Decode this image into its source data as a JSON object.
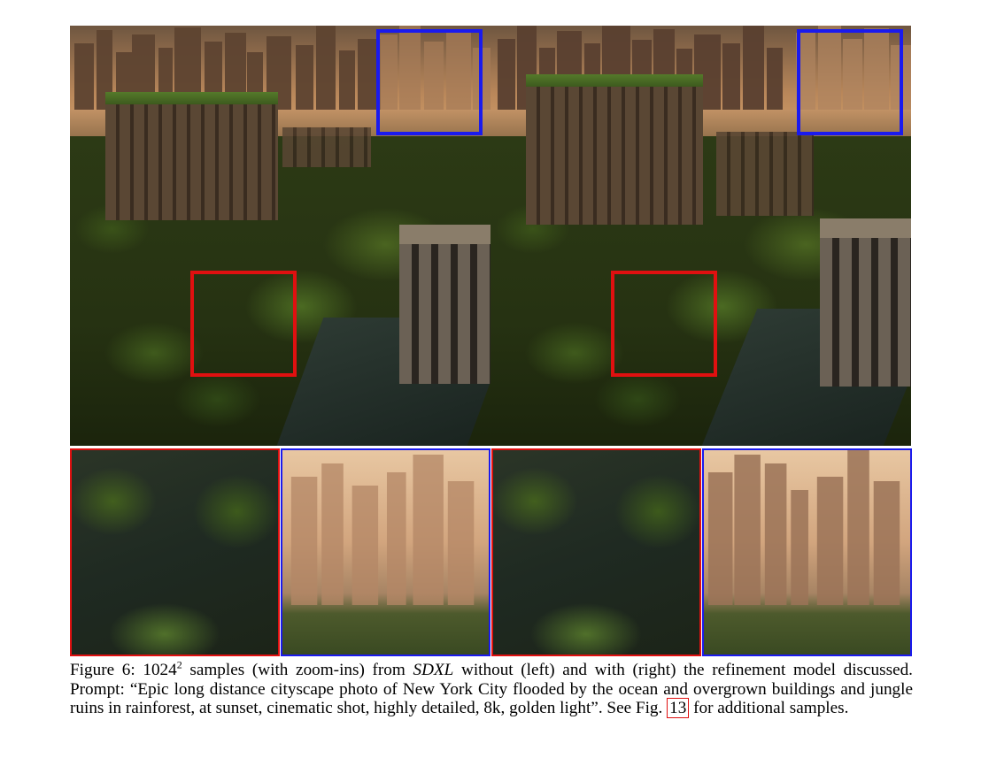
{
  "caption": {
    "figure_label": "Figure 6:",
    "size_base": "1024",
    "size_exp": "2",
    "text_1": " samples (with zoom-ins) from ",
    "model": "SDXL",
    "text_2": " without (left) and with (right) the refinement model discussed. Prompt: “Epic long distance cityscape photo of New York City flooded by the ocean and overgrown buildings and jungle ruins in rainforest, at sunset, cinematic shot, highly detailed, 8k, golden light”. See Fig. ",
    "ref": "13",
    "text_3": " for additional samples."
  },
  "colors": {
    "red_box": "#e01010",
    "blue_box": "#1a1aee"
  }
}
